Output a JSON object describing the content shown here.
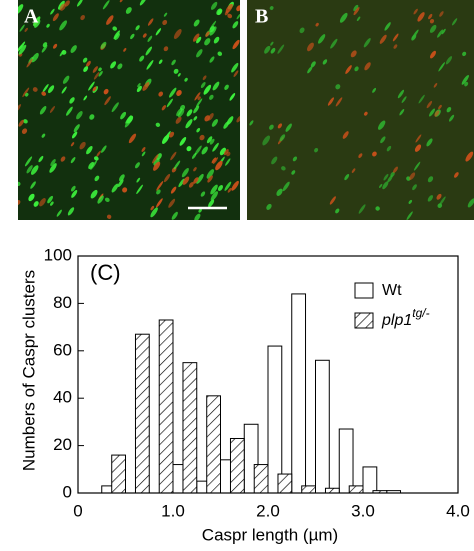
{
  "panels": [
    {
      "label": "A"
    },
    {
      "label": "B"
    }
  ],
  "chart_data": {
    "type": "bar",
    "annotation": "(C)",
    "x_label": "Caspr length (µm)",
    "y_label": "Numbers of Caspr clusters",
    "x": [
      0.25,
      0.5,
      0.75,
      1.0,
      1.25,
      1.5,
      1.75,
      2.0,
      2.25,
      2.5,
      2.75,
      3.0,
      3.25,
      3.5
    ],
    "series": [
      {
        "name": "Wt",
        "color": "#ffffff",
        "values": [
          3,
          0,
          0,
          12,
          5,
          14,
          29,
          62,
          84,
          56,
          27,
          11,
          1,
          0
        ]
      },
      {
        "name": "plp1",
        "name_superscript": "tg/-",
        "color": "hatched",
        "values": [
          0,
          16,
          67,
          73,
          55,
          41,
          23,
          12,
          8,
          3,
          2,
          3,
          1,
          0
        ]
      }
    ],
    "xlim": [
      0,
      4
    ],
    "xticks": [
      0,
      {
        "value": 1,
        "label": "1.0"
      },
      {
        "value": 2,
        "label": "2.0"
      },
      {
        "value": 3,
        "label": "3.0"
      },
      {
        "value": 4,
        "label": "4.0"
      }
    ],
    "ylim": [
      0,
      100
    ],
    "yticks": [
      0,
      20,
      40,
      60,
      80,
      100
    ],
    "legend": "upper right"
  }
}
